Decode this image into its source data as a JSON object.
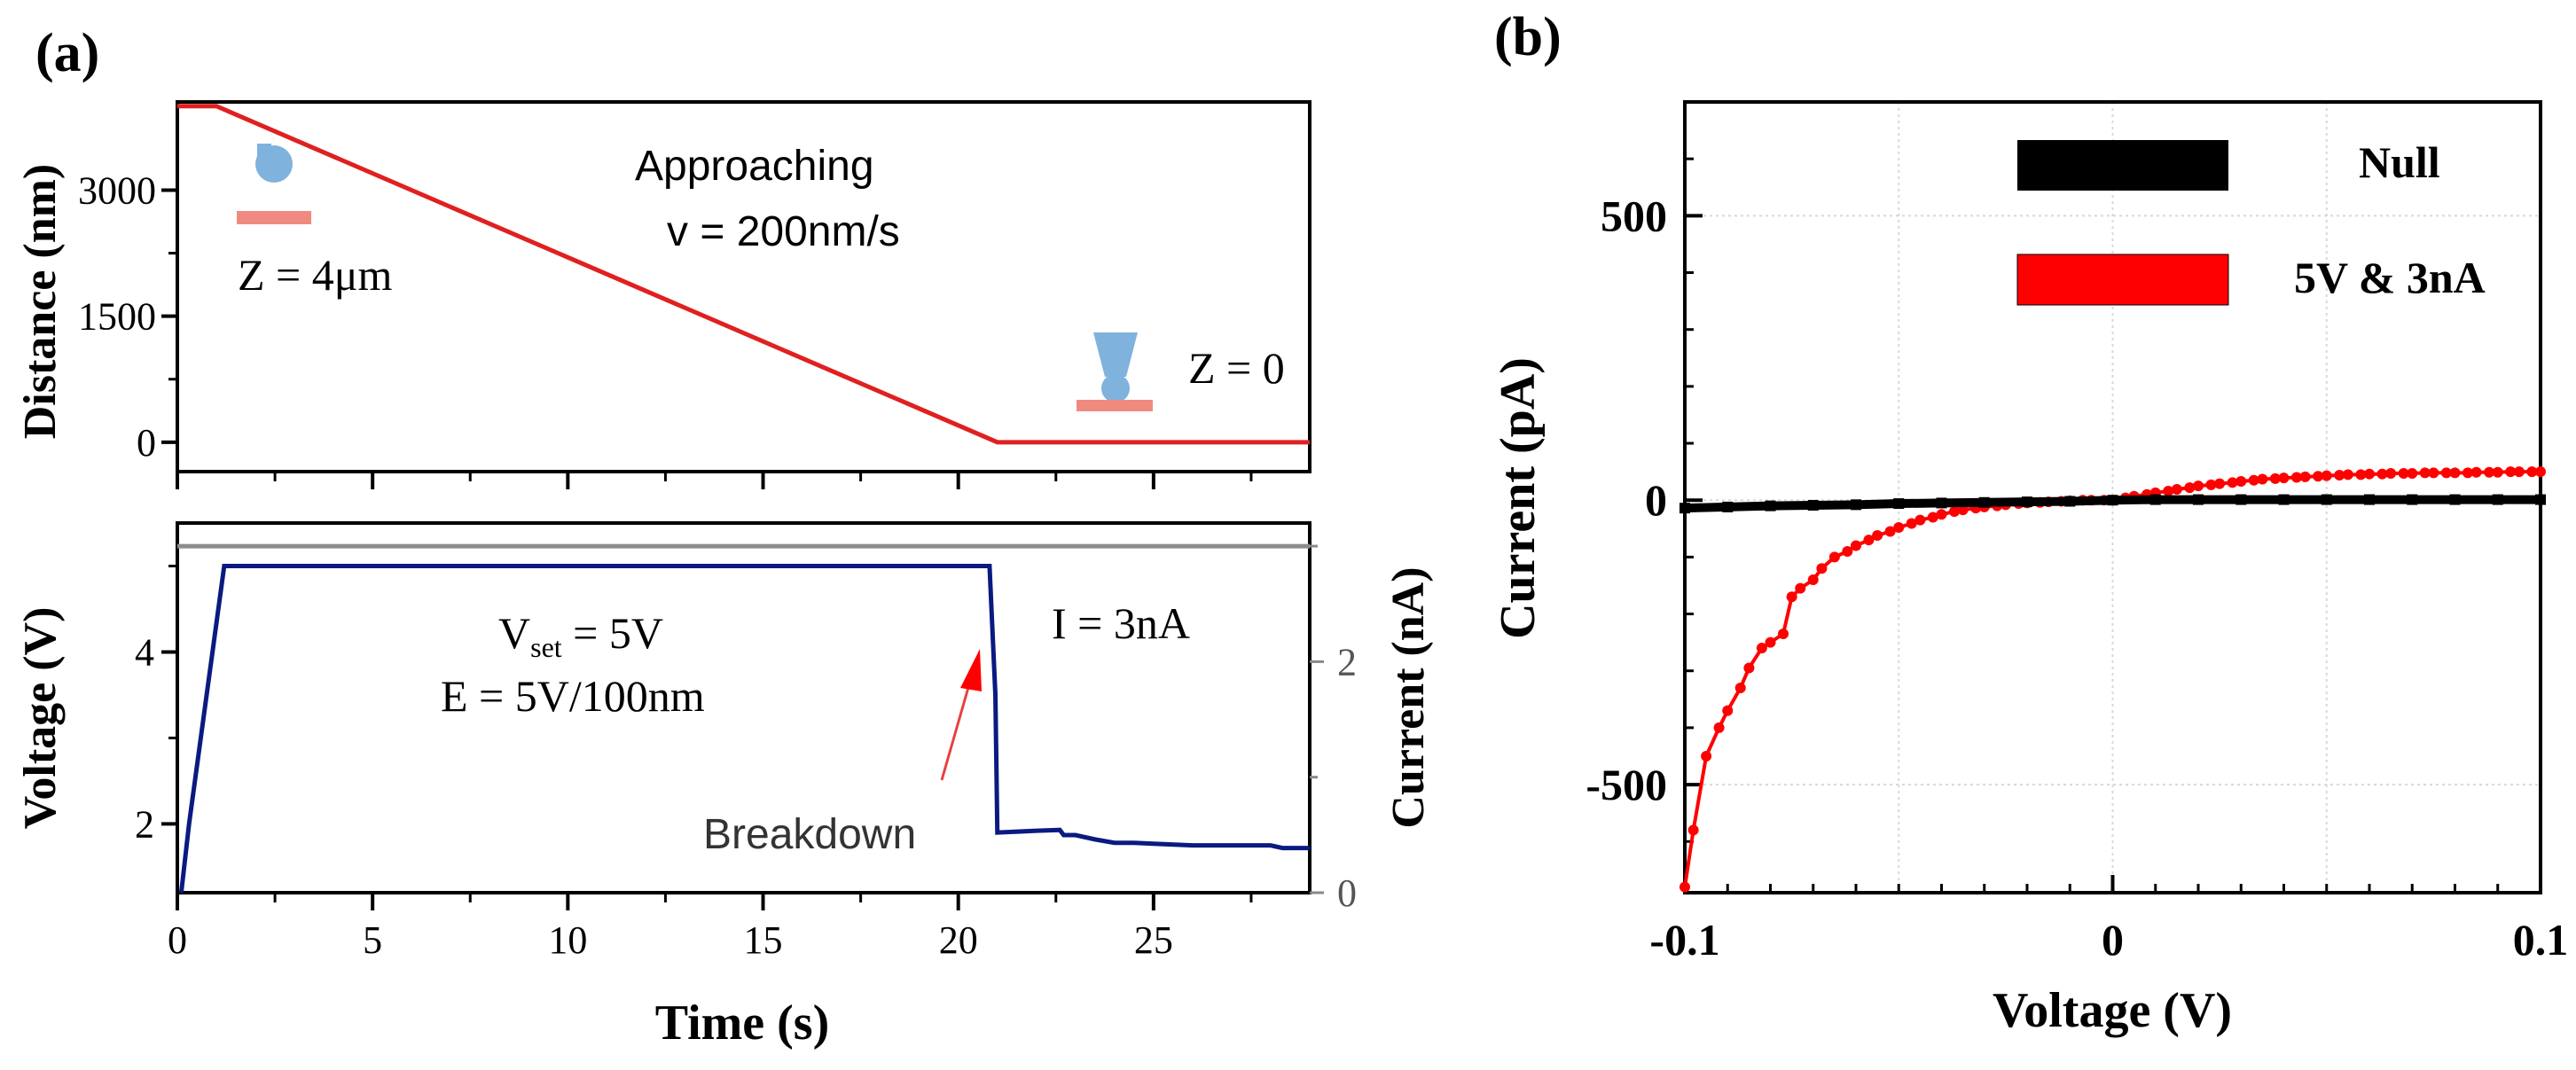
{
  "panel_a": {
    "label": "(a)",
    "distance_chart": {
      "ylabel": "Distance (nm)",
      "annotations": {
        "approaching": "Approaching",
        "velocity": "v = 200nm/s",
        "z_start": "Z = 4μm",
        "z_end": "Z = 0"
      }
    },
    "voltage_chart": {
      "ylabel_left": "Voltage  (V)",
      "ylabel_right": "Current (nA)",
      "annotations": {
        "vset_prefix": "V",
        "vset_sub": "set",
        "vset_suffix": " = 5V",
        "field": "E = 5V/100nm",
        "current": "I = 3nA",
        "breakdown": "Breakdown"
      }
    },
    "xlabel": "Time (s)"
  },
  "panel_b": {
    "label": "(b)",
    "xlabel": "Voltage (V)",
    "ylabel": "Current (pA)"
  },
  "colors": {
    "distance_line": "#e02020",
    "voltage_line": "#0a1a80",
    "current_line": "#8c8c8c",
    "series_null": "#000000",
    "series_5v": "#ff0000",
    "tip": "#7fb2dd",
    "substrate": "#f08a80"
  },
  "chart_data": [
    {
      "id": "distance",
      "type": "line",
      "title": "",
      "xlabel": "Time (s)",
      "ylabel": "Distance (nm)",
      "xlim": [
        0,
        29
      ],
      "ylim": [
        -350,
        4050
      ],
      "xticks": [
        0,
        5,
        10,
        15,
        20,
        25
      ],
      "yticks": [
        0,
        1500,
        3000
      ],
      "ytick_labels": [
        "0",
        "1500",
        "3000"
      ],
      "x": [
        0,
        1,
        21,
        29
      ],
      "y": [
        4000,
        4000,
        0,
        0
      ]
    },
    {
      "id": "voltage_current",
      "type": "line",
      "xlabel": "Time (s)",
      "ylabel": "Voltage  (V)",
      "ylabel_right": "Current (nA)",
      "xlim": [
        0,
        29
      ],
      "ylim": [
        1.2,
        5.5
      ],
      "ylim_right": [
        0,
        3.2
      ],
      "xticks": [
        0,
        5,
        10,
        15,
        20,
        25
      ],
      "xtick_labels": [
        "0",
        "5",
        "10",
        "15",
        "20",
        "25"
      ],
      "yticks": [
        2,
        4
      ],
      "ytick_labels": [
        "2",
        "4"
      ],
      "yticks_right": [
        0,
        2
      ],
      "ytick_labels_right": [
        "0",
        "2"
      ],
      "series": [
        {
          "name": "Voltage",
          "axis": "left",
          "x": [
            0.1,
            0.3,
            1.2,
            20.8,
            20.95,
            21.0,
            22.0,
            22.6,
            22.7,
            23.0,
            23.5,
            24.0,
            24.5,
            25.0,
            26.0,
            27.0,
            28.0,
            28.3,
            29.0
          ],
          "y": [
            1.2,
            2.0,
            5.0,
            5.0,
            3.5,
            1.9,
            1.92,
            1.93,
            1.87,
            1.87,
            1.82,
            1.78,
            1.78,
            1.77,
            1.75,
            1.75,
            1.75,
            1.72,
            1.72
          ]
        },
        {
          "name": "Current",
          "axis": "right",
          "x": [
            0,
            29
          ],
          "y": [
            3.0,
            3.0
          ]
        }
      ]
    },
    {
      "id": "iv_curve",
      "type": "line",
      "xlabel": "Voltage (V)",
      "ylabel": "Current (pA)",
      "xlim": [
        -0.1,
        0.1
      ],
      "ylim": [
        -690,
        700
      ],
      "xticks": [
        -0.1,
        0,
        0.1
      ],
      "xtick_labels": [
        "-0.1",
        "0",
        "0.1"
      ],
      "yticks": [
        -500,
        0,
        500
      ],
      "ytick_labels": [
        "-500",
        "0",
        "500"
      ],
      "grid": true,
      "legend": "top-right",
      "series": [
        {
          "name": "Null",
          "x": [
            -0.1,
            -0.09,
            -0.08,
            -0.07,
            -0.06,
            -0.05,
            -0.04,
            -0.03,
            -0.02,
            -0.01,
            0.0,
            0.01,
            0.02,
            0.03,
            0.04,
            0.05,
            0.06,
            0.07,
            0.08,
            0.09,
            0.1
          ],
          "y": [
            -14,
            -12,
            -10,
            -9,
            -8,
            -6,
            -5,
            -4,
            -3,
            -2,
            0,
            1,
            1,
            1,
            1,
            1,
            1,
            1,
            1,
            1,
            1
          ]
        },
        {
          "name": "5V & 3nA",
          "x": [
            -0.1,
            -0.098,
            -0.095,
            -0.092,
            -0.09,
            -0.087,
            -0.085,
            -0.082,
            -0.08,
            -0.077,
            -0.075,
            -0.073,
            -0.07,
            -0.068,
            -0.065,
            -0.062,
            -0.06,
            -0.057,
            -0.055,
            -0.052,
            -0.05,
            -0.047,
            -0.045,
            -0.042,
            -0.04,
            -0.037,
            -0.035,
            -0.032,
            -0.03,
            -0.027,
            -0.025,
            -0.022,
            -0.02,
            -0.017,
            -0.015,
            -0.012,
            -0.01,
            -0.007,
            -0.005,
            -0.002,
            0.0,
            0.003,
            0.005,
            0.008,
            0.01,
            0.013,
            0.015,
            0.018,
            0.02,
            0.023,
            0.025,
            0.028,
            0.03,
            0.033,
            0.035,
            0.038,
            0.04,
            0.043,
            0.045,
            0.048,
            0.05,
            0.053,
            0.055,
            0.058,
            0.06,
            0.063,
            0.065,
            0.068,
            0.07,
            0.073,
            0.075,
            0.078,
            0.08,
            0.083,
            0.085,
            0.088,
            0.09,
            0.093,
            0.095,
            0.098,
            0.1
          ],
          "y": [
            -680,
            -580,
            -450,
            -400,
            -370,
            -330,
            -295,
            -260,
            -250,
            -235,
            -170,
            -155,
            -140,
            -120,
            -100,
            -90,
            -80,
            -70,
            -62,
            -55,
            -48,
            -41,
            -35,
            -30,
            -25,
            -20,
            -17,
            -14,
            -12,
            -10,
            -8,
            -6,
            -5,
            -4,
            -3,
            -2,
            -1,
            0,
            0,
            0,
            0,
            4,
            7,
            10,
            13,
            16,
            19,
            22,
            25,
            27,
            29,
            31,
            33,
            35,
            37,
            38,
            39,
            40,
            41,
            42,
            43,
            44,
            45,
            45,
            46,
            46,
            47,
            47,
            47,
            48,
            48,
            48,
            48,
            48,
            49,
            49,
            49,
            50,
            50,
            50,
            50
          ]
        }
      ]
    }
  ]
}
